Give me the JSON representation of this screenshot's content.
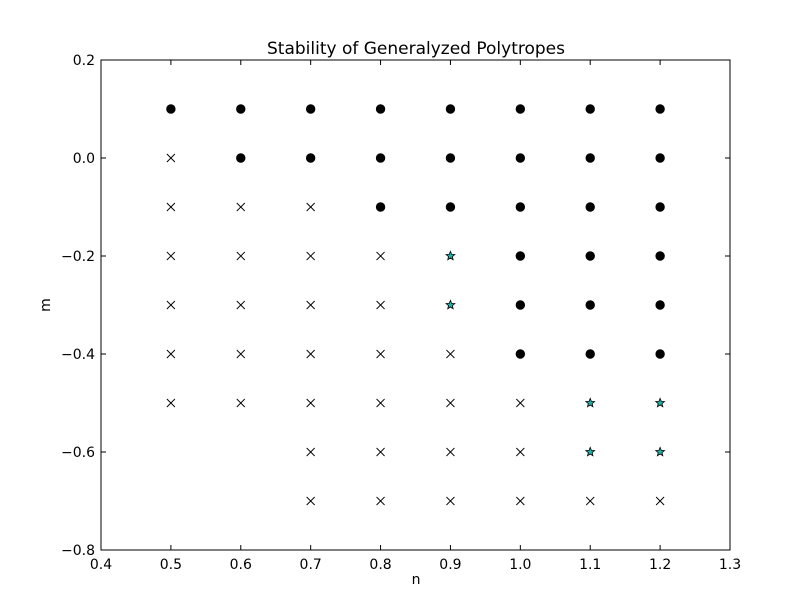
{
  "chart_data": {
    "type": "scatter",
    "title": "Stability of Generalyzed Polytropes",
    "xlabel": "n",
    "ylabel": "m",
    "xlim": [
      0.4,
      1.3
    ],
    "ylim": [
      -0.8,
      0.2
    ],
    "xticks": [
      0.4,
      0.5,
      0.6,
      0.7,
      0.8,
      0.9,
      1.0,
      1.1,
      1.2,
      1.3
    ],
    "xtick_labels": [
      "0.4",
      "0.5",
      "0.6",
      "0.7",
      "0.8",
      "0.9",
      "1.0",
      "1.1",
      "1.2",
      "1.3"
    ],
    "yticks": [
      0.2,
      0.0,
      -0.2,
      -0.4,
      -0.6,
      -0.8
    ],
    "ytick_labels": [
      "0.2",
      "0.0",
      "−0.2",
      "−0.4",
      "−0.6",
      "−0.8"
    ],
    "grid": false,
    "series": [
      {
        "marker": "circle",
        "color": "#000000",
        "points": [
          [
            0.5,
            0.1
          ],
          [
            0.6,
            0.1
          ],
          [
            0.7,
            0.1
          ],
          [
            0.8,
            0.1
          ],
          [
            0.9,
            0.1
          ],
          [
            1.0,
            0.1
          ],
          [
            1.1,
            0.1
          ],
          [
            1.2,
            0.1
          ],
          [
            0.6,
            0.0
          ],
          [
            0.7,
            0.0
          ],
          [
            0.8,
            0.0
          ],
          [
            0.9,
            0.0
          ],
          [
            1.0,
            0.0
          ],
          [
            1.1,
            0.0
          ],
          [
            1.2,
            0.0
          ],
          [
            0.8,
            -0.1
          ],
          [
            0.9,
            -0.1
          ],
          [
            1.0,
            -0.1
          ],
          [
            1.1,
            -0.1
          ],
          [
            1.2,
            -0.1
          ],
          [
            1.0,
            -0.2
          ],
          [
            1.1,
            -0.2
          ],
          [
            1.2,
            -0.2
          ],
          [
            1.0,
            -0.3
          ],
          [
            1.1,
            -0.3
          ],
          [
            1.2,
            -0.3
          ],
          [
            1.0,
            -0.4
          ],
          [
            1.1,
            -0.4
          ],
          [
            1.2,
            -0.4
          ]
        ]
      },
      {
        "marker": "x",
        "color": "#000000",
        "points": [
          [
            0.5,
            0.0
          ],
          [
            0.5,
            -0.1
          ],
          [
            0.6,
            -0.1
          ],
          [
            0.7,
            -0.1
          ],
          [
            0.5,
            -0.2
          ],
          [
            0.6,
            -0.2
          ],
          [
            0.7,
            -0.2
          ],
          [
            0.8,
            -0.2
          ],
          [
            0.5,
            -0.3
          ],
          [
            0.6,
            -0.3
          ],
          [
            0.7,
            -0.3
          ],
          [
            0.8,
            -0.3
          ],
          [
            0.5,
            -0.4
          ],
          [
            0.6,
            -0.4
          ],
          [
            0.7,
            -0.4
          ],
          [
            0.8,
            -0.4
          ],
          [
            0.9,
            -0.4
          ],
          [
            0.5,
            -0.5
          ],
          [
            0.6,
            -0.5
          ],
          [
            0.7,
            -0.5
          ],
          [
            0.8,
            -0.5
          ],
          [
            0.9,
            -0.5
          ],
          [
            1.0,
            -0.5
          ],
          [
            0.7,
            -0.6
          ],
          [
            0.8,
            -0.6
          ],
          [
            0.9,
            -0.6
          ],
          [
            1.0,
            -0.6
          ],
          [
            0.7,
            -0.7
          ],
          [
            0.8,
            -0.7
          ],
          [
            0.9,
            -0.7
          ],
          [
            1.0,
            -0.7
          ],
          [
            1.1,
            -0.7
          ],
          [
            1.2,
            -0.7
          ]
        ]
      },
      {
        "marker": "star",
        "color": "#20b2aa",
        "points": [
          [
            0.9,
            -0.2
          ],
          [
            0.9,
            -0.3
          ],
          [
            1.1,
            -0.5
          ],
          [
            1.2,
            -0.5
          ],
          [
            1.1,
            -0.6
          ],
          [
            1.2,
            -0.6
          ]
        ]
      }
    ]
  }
}
